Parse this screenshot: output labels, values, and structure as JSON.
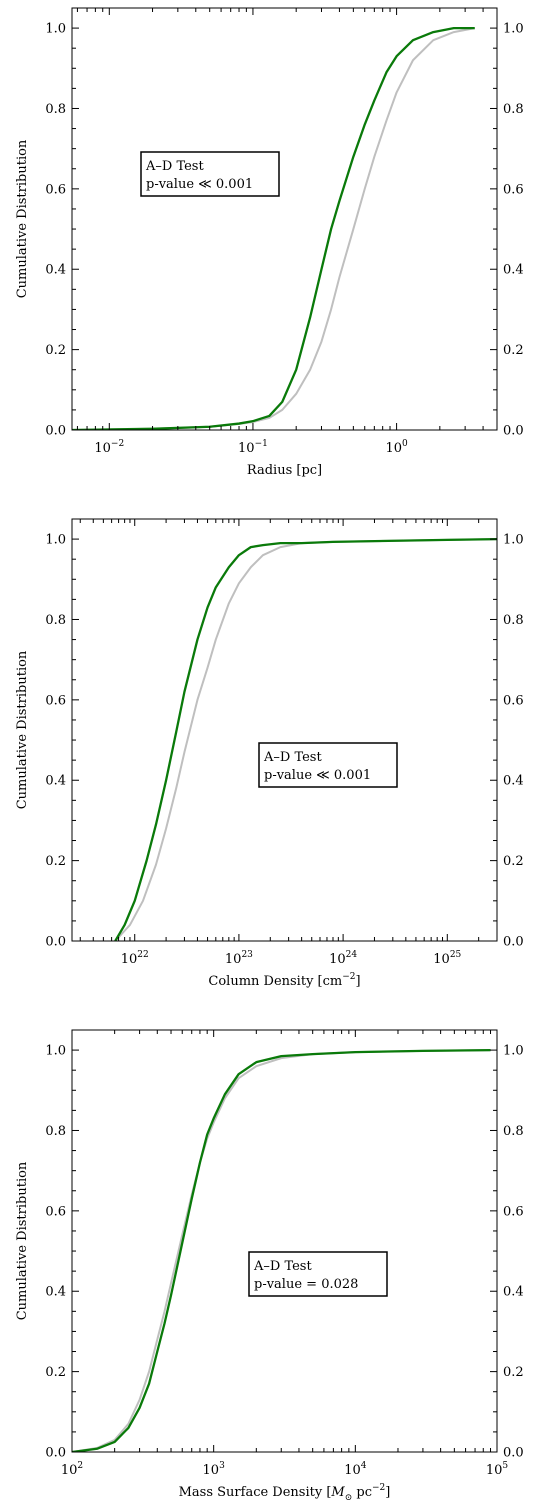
{
  "chart_data": [
    {
      "type": "line",
      "xlabel": "Radius [pc]",
      "ylabel": "Cumulative Distribution",
      "xscale": "log",
      "xlim": [
        0.0055,
        5
      ],
      "ylim": [
        0,
        1.05
      ],
      "xticks": [
        {
          "value": 0.01,
          "base": "10",
          "exp": "−2"
        },
        {
          "value": 0.1,
          "base": "10",
          "exp": "−1"
        },
        {
          "value": 1,
          "base": "10",
          "exp": "0"
        }
      ],
      "yticks": [
        {
          "value": 0,
          "label": "0.0"
        },
        {
          "value": 0.2,
          "label": "0.2"
        },
        {
          "value": 0.4,
          "label": "0.4"
        },
        {
          "value": 0.6,
          "label": "0.6"
        },
        {
          "value": 0.8,
          "label": "0.8"
        },
        {
          "value": 1.0,
          "label": "1.0"
        }
      ],
      "annotation": {
        "line1": "A–D Test",
        "line2": "p-value ≪ 0.001"
      },
      "annotation_position": "upper-left",
      "series": [
        {
          "color": "#bfbfbf",
          "x": [
            0.0055,
            0.02,
            0.05,
            0.08,
            0.1,
            0.13,
            0.16,
            0.2,
            0.25,
            0.3,
            0.35,
            0.4,
            0.5,
            0.6,
            0.7,
            0.85,
            1.0,
            1.3,
            1.8,
            2.5,
            3.5
          ],
          "y": [
            0.0,
            0.003,
            0.008,
            0.015,
            0.02,
            0.03,
            0.05,
            0.09,
            0.15,
            0.22,
            0.3,
            0.38,
            0.5,
            0.6,
            0.68,
            0.77,
            0.84,
            0.92,
            0.97,
            0.99,
            1.0
          ]
        },
        {
          "color": "#0a7a0a",
          "x": [
            0.0055,
            0.02,
            0.05,
            0.08,
            0.1,
            0.13,
            0.16,
            0.2,
            0.25,
            0.3,
            0.35,
            0.4,
            0.5,
            0.6,
            0.7,
            0.85,
            1.0,
            1.3,
            1.8,
            2.5,
            3.5
          ],
          "y": [
            0.0,
            0.003,
            0.008,
            0.016,
            0.022,
            0.035,
            0.07,
            0.15,
            0.28,
            0.4,
            0.5,
            0.57,
            0.68,
            0.76,
            0.82,
            0.89,
            0.93,
            0.97,
            0.99,
            1.0,
            1.0
          ]
        }
      ]
    },
    {
      "type": "line",
      "xlabel": "Column Density [cm",
      "xlabel_sup": "−2",
      "xlabel_tail": "]",
      "ylabel": "Cumulative Distribution",
      "xscale": "log",
      "xlim": [
        2.5e+21,
        3e+25
      ],
      "ylim": [
        0,
        1.05
      ],
      "xticks": [
        {
          "value": 1e+22,
          "base": "10",
          "exp": "22"
        },
        {
          "value": 1e+23,
          "base": "10",
          "exp": "23"
        },
        {
          "value": 1e+24,
          "base": "10",
          "exp": "24"
        },
        {
          "value": 1e+25,
          "base": "10",
          "exp": "25"
        }
      ],
      "yticks": [
        {
          "value": 0,
          "label": "0.0"
        },
        {
          "value": 0.2,
          "label": "0.2"
        },
        {
          "value": 0.4,
          "label": "0.4"
        },
        {
          "value": 0.6,
          "label": "0.6"
        },
        {
          "value": 0.8,
          "label": "0.8"
        },
        {
          "value": 1.0,
          "label": "1.0"
        }
      ],
      "annotation": {
        "line1": "A–D Test",
        "line2": "p-value ≪ 0.001"
      },
      "annotation_position": "center-right",
      "series": [
        {
          "color": "#bfbfbf",
          "x": [
            6.5e+21,
            9e+21,
            1.2e+22,
            1.6e+22,
            2e+22,
            2.5e+22,
            3e+22,
            4e+22,
            5e+22,
            6e+22,
            8e+22,
            1e+23,
            1.3e+23,
            1.7e+23,
            2.5e+23,
            4e+23,
            8e+23,
            2e+24,
            1e+25,
            3e+25
          ],
          "y": [
            0.0,
            0.04,
            0.1,
            0.19,
            0.28,
            0.38,
            0.47,
            0.6,
            0.68,
            0.75,
            0.84,
            0.89,
            0.93,
            0.96,
            0.98,
            0.99,
            0.993,
            0.995,
            0.998,
            1.0
          ]
        },
        {
          "color": "#0a7a0a",
          "x": [
            6.5e+21,
            8e+21,
            1e+22,
            1.3e+22,
            1.6e+22,
            2e+22,
            2.5e+22,
            3e+22,
            4e+22,
            5e+22,
            6e+22,
            8e+22,
            1e+23,
            1.3e+23,
            1.7e+23,
            2.5e+23,
            4e+23,
            8e+23,
            2e+24,
            1e+25,
            3e+25
          ],
          "y": [
            0.0,
            0.04,
            0.1,
            0.2,
            0.29,
            0.4,
            0.52,
            0.62,
            0.75,
            0.83,
            0.88,
            0.93,
            0.96,
            0.98,
            0.985,
            0.99,
            0.99,
            0.993,
            0.995,
            0.998,
            1.0
          ]
        }
      ]
    },
    {
      "type": "line",
      "xlabel": "Mass Surface Density [",
      "xlabel_math": "M",
      "xlabel_sub": "⊙",
      "xlabel_mid": " pc",
      "xlabel_sup": "−2",
      "xlabel_tail": "]",
      "ylabel": "Cumulative Distribution",
      "xscale": "log",
      "xlim": [
        100,
        100000
      ],
      "ylim": [
        0,
        1.05
      ],
      "xticks": [
        {
          "value": 100,
          "base": "10",
          "exp": "2"
        },
        {
          "value": 1000,
          "base": "10",
          "exp": "3"
        },
        {
          "value": 10000,
          "base": "10",
          "exp": "4"
        },
        {
          "value": 100000,
          "base": "10",
          "exp": "5"
        }
      ],
      "yticks": [
        {
          "value": 0,
          "label": "0.0"
        },
        {
          "value": 0.2,
          "label": "0.2"
        },
        {
          "value": 0.4,
          "label": "0.4"
        },
        {
          "value": 0.6,
          "label": "0.6"
        },
        {
          "value": 0.8,
          "label": "0.8"
        },
        {
          "value": 1.0,
          "label": "1.0"
        }
      ],
      "annotation": {
        "line1": "A–D Test",
        "line2": "p-value = 0.028"
      },
      "annotation_position": "center-right",
      "series": [
        {
          "color": "#bfbfbf",
          "x": [
            100,
            150,
            200,
            250,
            300,
            350,
            400,
            450,
            500,
            600,
            700,
            800,
            900,
            1000,
            1200,
            1500,
            2000,
            3000,
            5000,
            10000,
            30000,
            90000
          ],
          "y": [
            0.0,
            0.01,
            0.03,
            0.07,
            0.13,
            0.2,
            0.28,
            0.35,
            0.42,
            0.54,
            0.64,
            0.72,
            0.78,
            0.82,
            0.88,
            0.93,
            0.96,
            0.98,
            0.99,
            0.995,
            0.998,
            1.0
          ]
        },
        {
          "color": "#0a7a0a",
          "x": [
            100,
            150,
            200,
            250,
            300,
            350,
            400,
            450,
            500,
            600,
            700,
            800,
            900,
            1000,
            1200,
            1500,
            2000,
            3000,
            5000,
            10000,
            30000,
            90000
          ],
          "y": [
            0.0,
            0.008,
            0.025,
            0.06,
            0.11,
            0.17,
            0.25,
            0.32,
            0.39,
            0.52,
            0.63,
            0.72,
            0.79,
            0.83,
            0.89,
            0.94,
            0.97,
            0.985,
            0.99,
            0.995,
            0.998,
            1.0
          ]
        }
      ]
    }
  ]
}
